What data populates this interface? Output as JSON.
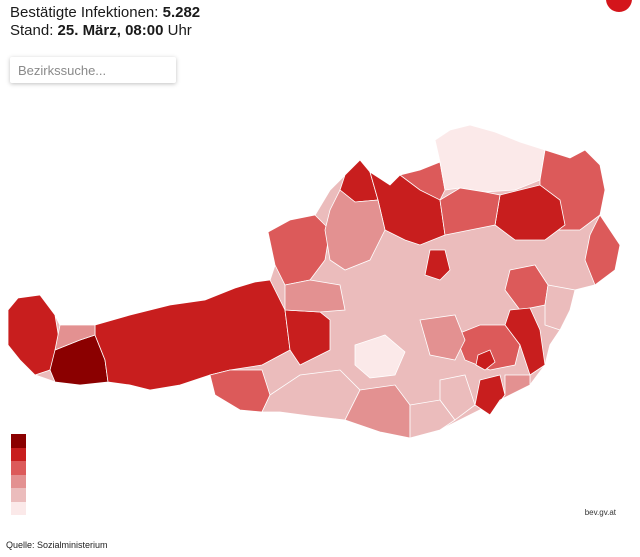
{
  "header": {
    "cases_label": "Bestätigte Infektionen: ",
    "cases_value": "5.282",
    "stand_label": "Stand: ",
    "stand_date": "25. März, 08:00",
    "stand_unit": " Uhr"
  },
  "search": {
    "placeholder": "Bezirkssuche..."
  },
  "legend": {
    "colors": [
      "#8b0000",
      "#c81e1e",
      "#dc5a5a",
      "#e39191",
      "#ebbcbc",
      "#fbe9e9"
    ]
  },
  "source": "Quelle: Sozialministerium",
  "attribution": "bev.gv.at",
  "colors": {
    "darkest": "#8b0000",
    "dark": "#c81e1e",
    "mid": "#dc5a5a",
    "light": "#e39191",
    "lighter": "#ebbcbc",
    "lightest": "#fbe9e9",
    "logo": "#d4151b"
  }
}
